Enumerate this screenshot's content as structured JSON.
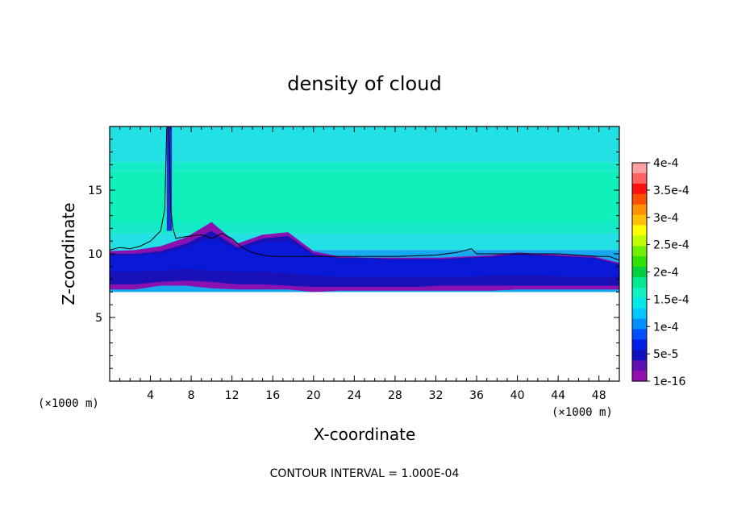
{
  "chart_data": {
    "type": "heatmap",
    "title": "density of cloud",
    "xlabel": "X-coordinate",
    "ylabel": "Z-coordinate",
    "x_unit": "(×1000 m)",
    "z_unit": "(×1000 m)",
    "xlim": [
      0,
      50
    ],
    "ylim": [
      0,
      20
    ],
    "x_ticks": [
      4,
      8,
      12,
      16,
      20,
      24,
      28,
      32,
      36,
      40,
      44,
      48
    ],
    "y_ticks": [
      5,
      10,
      15
    ],
    "footer": "CONTOUR INTERVAL = 1.000E-04",
    "colorbar": {
      "labels": [
        "4e-4",
        "3.5e-4",
        "3e-4",
        "2.5e-4",
        "2e-4",
        "1.5e-4",
        "1e-4",
        "5e-5",
        "1e-16"
      ],
      "values": [
        0.0004,
        0.00035,
        0.0003,
        0.00025,
        0.0002,
        0.00015,
        0.0001,
        5e-05,
        1e-16
      ],
      "colors": [
        "#ffa0a0",
        "#ff6060",
        "#ff1010",
        "#ff5000",
        "#ff9000",
        "#ffc000",
        "#ffff00",
        "#c0ff00",
        "#70f000",
        "#30e000",
        "#00d040",
        "#00e890",
        "#10f0c0",
        "#00e8e8",
        "#00c8ff",
        "#0090ff",
        "#0050ff",
        "#0020e8",
        "#1010c0",
        "#6010b0",
        "#9010b0"
      ]
    },
    "field_layers": [
      {
        "level": "1e-16",
        "color": "#8a10b0",
        "ztop": [
          10.2,
          10.3,
          10.6,
          11.3,
          12.5,
          10.8,
          11.5,
          11.7,
          10.2,
          9.8,
          9.7,
          9.7,
          9.7,
          9.7,
          9.8,
          9.9,
          10.1,
          10.0,
          9.9,
          9.8,
          9.3
        ],
        "zbot": [
          7.2,
          7.2,
          7.5,
          7.5,
          7.3,
          7.2,
          7.2,
          7.2,
          7.0,
          7.1,
          7.1,
          7.1,
          7.1,
          7.1,
          7.1,
          7.1,
          7.2,
          7.2,
          7.2,
          7.2,
          7.2
        ]
      },
      {
        "level": "1e-5",
        "color": "#1a10b8",
        "ztop": [
          10.0,
          10.0,
          10.2,
          10.8,
          11.8,
          10.5,
          11.2,
          11.4,
          10.0,
          9.7,
          9.7,
          9.6,
          9.6,
          9.6,
          9.7,
          9.8,
          10.0,
          9.9,
          9.8,
          9.7,
          9.2
        ],
        "zbot": [
          7.6,
          7.6,
          7.8,
          7.9,
          7.8,
          7.6,
          7.6,
          7.5,
          7.4,
          7.4,
          7.4,
          7.4,
          7.4,
          7.5,
          7.5,
          7.5,
          7.5,
          7.5,
          7.5,
          7.5,
          7.5
        ]
      },
      {
        "level": "3e-5",
        "color": "#0a18d8",
        "ztop": [
          9.8,
          9.9,
          10.0,
          10.5,
          11.3,
          10.3,
          10.9,
          11.0,
          9.9,
          9.6,
          9.6,
          9.5,
          9.5,
          9.5,
          9.6,
          9.7,
          9.9,
          9.8,
          9.7,
          9.6,
          9.1
        ],
        "zbot": [
          8.6,
          8.6,
          8.7,
          8.8,
          8.7,
          8.6,
          8.6,
          8.5,
          8.3,
          8.2,
          8.2,
          8.2,
          8.2,
          8.2,
          8.2,
          8.3,
          8.3,
          8.3,
          8.2,
          8.2,
          8.2
        ]
      }
    ],
    "upper_bands": [
      {
        "zmin": 17.2,
        "zmax": 20,
        "value": "1e-4 to 1.1e-4"
      },
      {
        "zmin": 16.5,
        "zmax": 17.2,
        "value": "1.1e-4 to 1.2e-4"
      },
      {
        "zmin": 12.5,
        "zmax": 16.5,
        "value": "1.2e-4 to 1.3e-4"
      },
      {
        "zmin": 11.6,
        "zmax": 12.5,
        "value": "1.1e-4 to 1.2e-4"
      },
      {
        "zmin": 10.3,
        "zmax": 11.6,
        "value": "1e-4 to 1.1e-4"
      },
      {
        "zmin": 7.0,
        "zmax": 10.3,
        "value": "5e-5 to 1e-4"
      }
    ],
    "contour_1e-4": {
      "x": [
        0,
        1,
        2,
        3,
        4,
        5,
        5.4,
        5.6,
        5.8,
        6.0,
        6.2,
        6.5,
        7,
        8,
        9,
        10,
        11,
        12,
        13,
        14,
        15,
        16,
        20,
        24,
        28,
        32,
        34,
        35,
        35.5,
        36,
        40,
        44,
        46,
        48,
        49,
        50
      ],
      "z": [
        10.3,
        10.5,
        10.4,
        10.6,
        11.0,
        11.8,
        13.5,
        20,
        20,
        13.5,
        12.0,
        11.2,
        11.3,
        11.4,
        11.5,
        11.2,
        11.6,
        11.2,
        10.5,
        10.1,
        9.9,
        9.8,
        9.8,
        9.8,
        9.8,
        9.9,
        10.1,
        10.3,
        10.4,
        10.0,
        10.0,
        10.0,
        9.9,
        9.8,
        9.8,
        9.5
      ]
    }
  }
}
